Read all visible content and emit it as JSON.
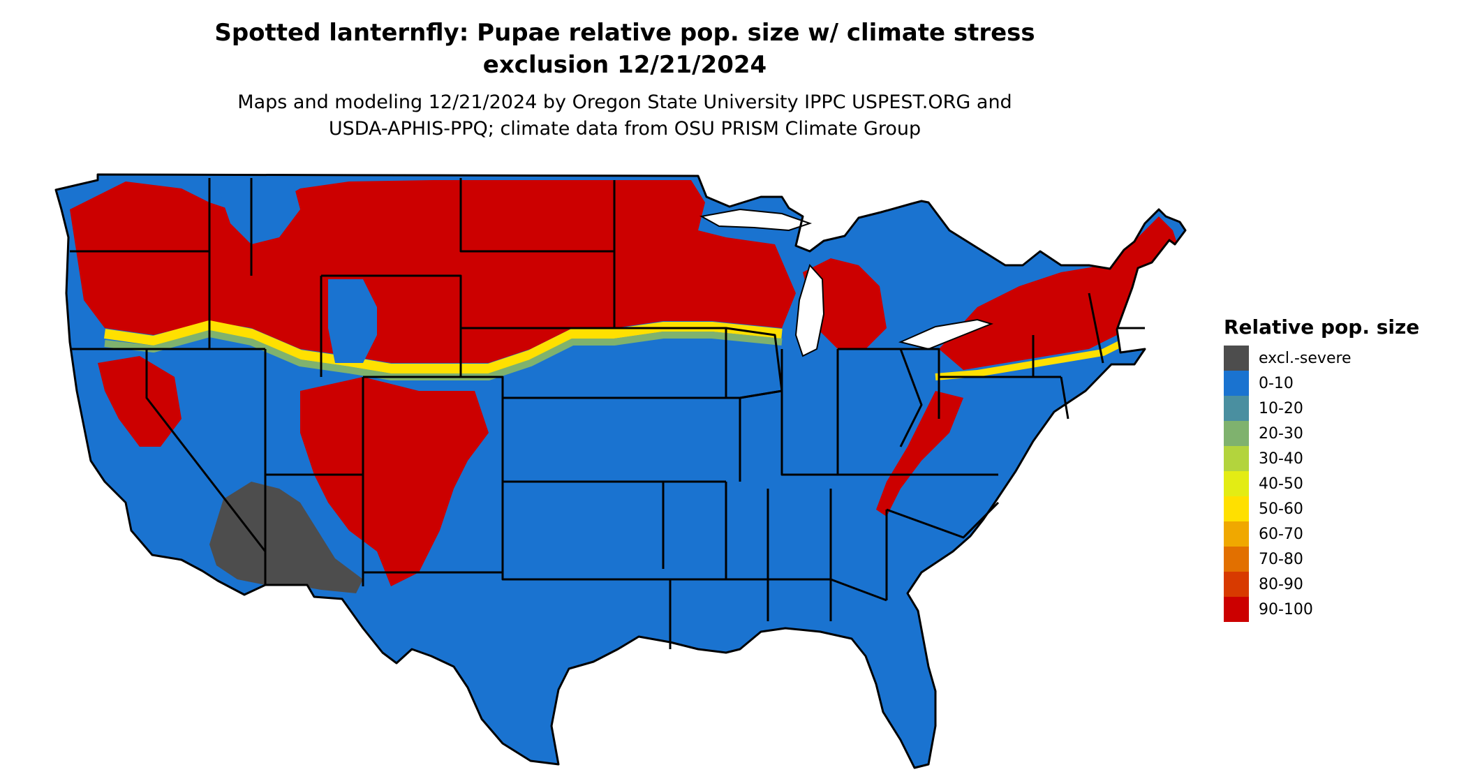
{
  "title_line1": "Spotted lanternfly: Pupae relative pop. size w/ climate stress",
  "title_line2": "exclusion 12/21/2024",
  "subtitle_line1": "Maps and modeling 12/21/2024 by Oregon State University IPPC USPEST.ORG and",
  "subtitle_line2": "USDA-APHIS-PPQ; climate data from OSU PRISM Climate Group",
  "legend": {
    "title": "Relative pop. size",
    "items": [
      {
        "label": "excl.-severe",
        "color": "#4d4d4d"
      },
      {
        "label": "0-10",
        "color": "#1a73d0"
      },
      {
        "label": "10-20",
        "color": "#4a8fa0"
      },
      {
        "label": "20-30",
        "color": "#7fb26e"
      },
      {
        "label": "30-40",
        "color": "#b3d43d"
      },
      {
        "label": "40-50",
        "color": "#e3ec14"
      },
      {
        "label": "50-60",
        "color": "#ffe000"
      },
      {
        "label": "60-70",
        "color": "#f0a800"
      },
      {
        "label": "70-80",
        "color": "#e27000"
      },
      {
        "label": "80-90",
        "color": "#d83a00"
      },
      {
        "label": "90-100",
        "color": "#cc0000"
      }
    ]
  },
  "colors": {
    "base": "#1a73d0",
    "high": "#cc0000",
    "mid": "#ffe000",
    "transition": "#7fb26e",
    "excluded": "#4d4d4d",
    "border": "#000000"
  }
}
